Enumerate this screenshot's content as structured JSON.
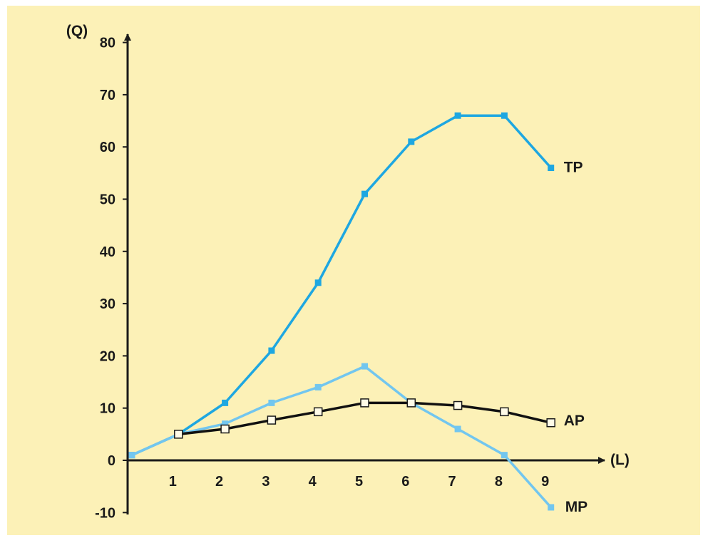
{
  "chart_data": {
    "type": "line",
    "title": "",
    "xlabel": "(L)",
    "ylabel": "(Q)",
    "xlim": [
      0,
      9
    ],
    "ylim": [
      -10,
      80
    ],
    "x_ticks": [
      "1",
      "2",
      "3",
      "4",
      "5",
      "6",
      "7",
      "8",
      "9"
    ],
    "y_ticks": [
      "80",
      "70",
      "60",
      "50",
      "40",
      "30",
      "20",
      "10",
      "0",
      "-10"
    ],
    "grid": false,
    "background": "#fcf1b7",
    "series": [
      {
        "name": "TP",
        "color": "#1ea7e1",
        "marker": "filled-square",
        "points": [
          [
            0,
            1
          ],
          [
            1,
            5
          ],
          [
            2,
            11
          ],
          [
            3,
            21
          ],
          [
            4,
            34
          ],
          [
            5,
            51
          ],
          [
            6,
            61
          ],
          [
            7,
            66
          ],
          [
            8,
            66
          ],
          [
            9,
            56
          ]
        ]
      },
      {
        "name": "MP",
        "color": "#72c6ef",
        "marker": "filled-square",
        "points": [
          [
            0,
            1
          ],
          [
            1,
            5
          ],
          [
            2,
            7
          ],
          [
            3,
            11
          ],
          [
            4,
            14
          ],
          [
            5,
            18
          ],
          [
            6,
            11
          ],
          [
            7,
            6
          ],
          [
            8,
            1
          ],
          [
            9,
            -9
          ]
        ]
      },
      {
        "name": "AP",
        "color": "#111111",
        "marker": "open-square",
        "points": [
          [
            1,
            5
          ],
          [
            2,
            6
          ],
          [
            3,
            7.7
          ],
          [
            4,
            9.3
          ],
          [
            5,
            11
          ],
          [
            6,
            11
          ],
          [
            7,
            10.5
          ],
          [
            8,
            9.3
          ],
          [
            9,
            7.2
          ]
        ]
      }
    ]
  }
}
